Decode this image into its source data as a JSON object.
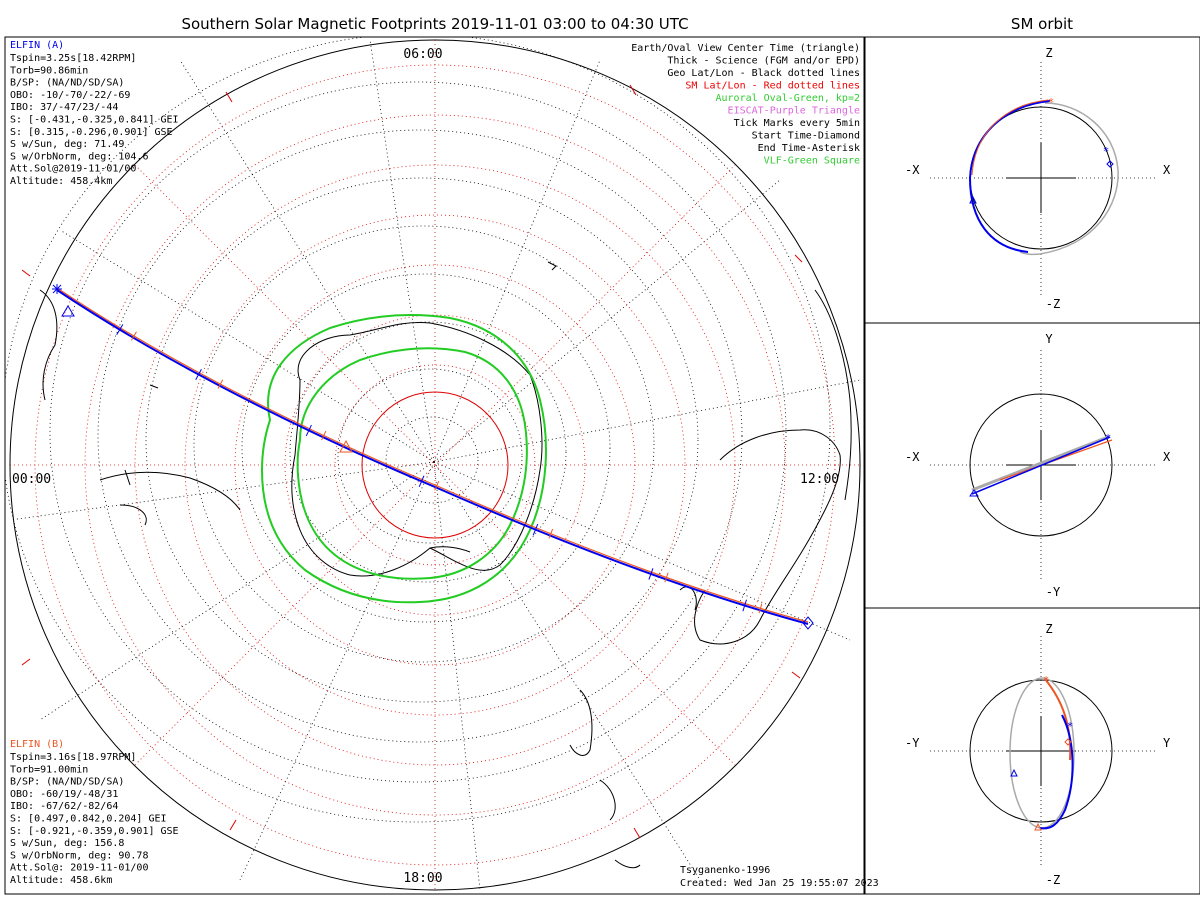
{
  "title": "Southern Solar Magnetic Footprints 2019-11-01 03:00 to 04:30 UTC",
  "orbit_title": "SM orbit",
  "map": {
    "mlt_labels": {
      "top": "06:00",
      "left": "00:00",
      "right": "12:00",
      "bottom": "18:00"
    },
    "kp": 2,
    "oval_color": "#22cc22",
    "sm_grid_color": "#dd0000",
    "geo_grid_color": "#000000"
  },
  "legend": [
    {
      "text": "Earth/Oval View Center Time (triangle)",
      "color": "#000000"
    },
    {
      "text": "Thick - Science (FGM and/or EPD)",
      "color": "#000000"
    },
    {
      "text": "Geo Lat/Lon - Black dotted lines",
      "color": "#000000"
    },
    {
      "text": "SM Lat/Lon - Red dotted lines",
      "color": "#ee0000"
    },
    {
      "text": "Auroral Oval-Green, kp=2",
      "color": "#33cc33"
    },
    {
      "text": "EISCAT-Purple Triangle",
      "color": "#dd66dd"
    },
    {
      "text": "Tick Marks every 5min",
      "color": "#000000"
    },
    {
      "text": "Start Time-Diamond",
      "color": "#000000"
    },
    {
      "text": "End Time-Asterisk",
      "color": "#000000"
    },
    {
      "text": "VLF-Green Square",
      "color": "#33cc33"
    }
  ],
  "probe_a": {
    "name": "ELFIN (A)",
    "color": "#0000ee",
    "lines": [
      "Tspin=3.25s[18.42RPM]",
      "Torb=90.86min",
      "B/SP: (NA/ND/SD/SA)",
      "OBO: -10/-70/-22/-69",
      "IBO: 37/-47/23/-44",
      "S: [-0.431,-0.325,0.841] GEI",
      "S: [0.315,-0.296,0.901] GSE",
      "S w/Sun, deg: 71.49",
      "S w/OrbNorm, deg: 104.6",
      "Att.Sol@2019-11-01/00",
      "Altitude: 458.4km"
    ]
  },
  "probe_b": {
    "name": "ELFIN (B)",
    "color": "#ee5522",
    "lines": [
      "Tspin=3.16s[18.97RPM]",
      "Torb=91.00min",
      "B/SP: (NA/ND/SD/SA)",
      "OBO: -60/19/-48/31",
      "IBO: -67/62/-82/64",
      "S: [0.497,0.842,0.204] GEI",
      "S: [-0.921,-0.359,0.901] GSE",
      "S w/Sun, deg: 156.8",
      "S w/OrbNorm, deg: 90.78",
      "Att.Sol@: 2019-11-01/00",
      "Altitude: 458.6km"
    ]
  },
  "footer": {
    "model": "Tsyganenko-1996",
    "created": "Created: Wed Jan 25 19:55:07 2023"
  },
  "orbit_panels": [
    {
      "id": "xz",
      "top": "Z",
      "bottom": "-Z",
      "left": "-X",
      "right": "X"
    },
    {
      "id": "xy",
      "top": "Y",
      "bottom": "-Y",
      "left": "-X",
      "right": "X"
    },
    {
      "id": "yz",
      "top": "Z",
      "bottom": "-Z",
      "left": "-Y",
      "right": "Y"
    }
  ]
}
